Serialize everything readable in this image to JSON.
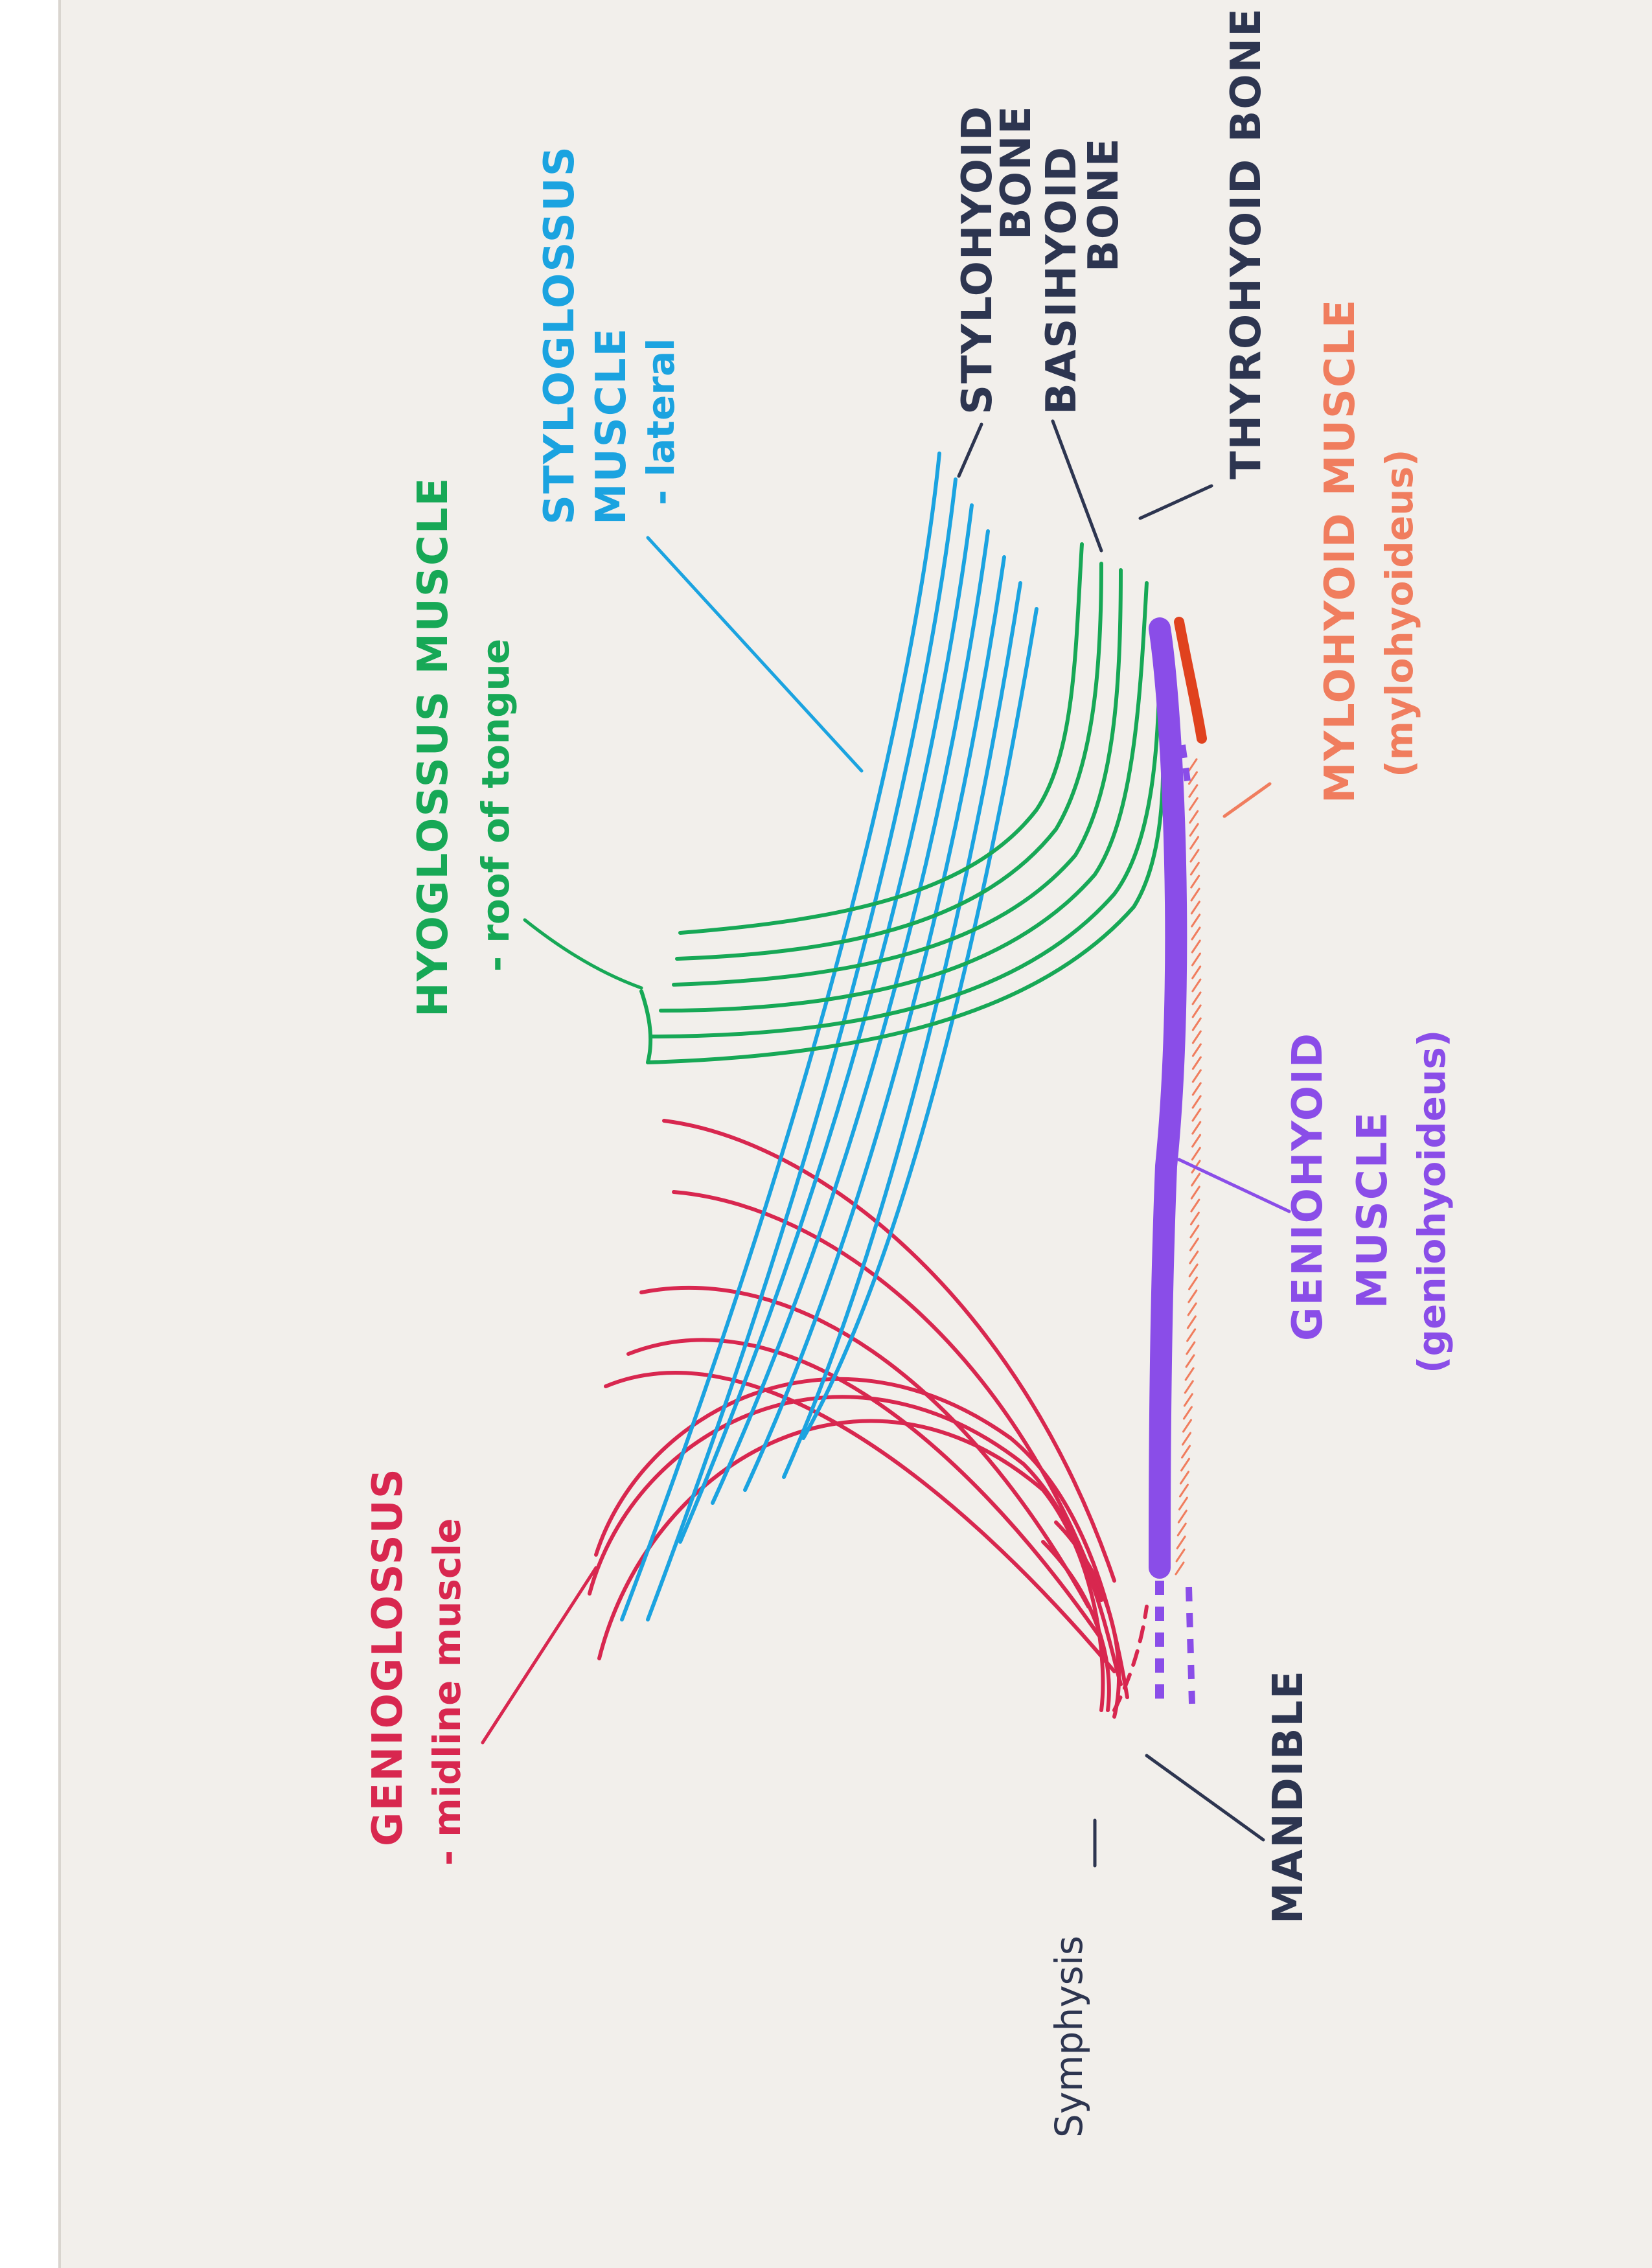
{
  "colors": {
    "paper": "#f2efeb",
    "scanner_edge": "#ffffff",
    "genioglossus": "#d8274f",
    "hyoglossus": "#17a856",
    "styloglossus": "#1ba3e0",
    "mylohyoid": "#f07d5e",
    "mylohyoid_dark": "#e0421e",
    "geniohyoid": "#8a4de8",
    "bone_ink": "#2d3550",
    "label_ink": "#1f2840"
  },
  "labels": {
    "genioglossus": {
      "line1": "GENIOGLOSSUS",
      "line2": "- midline muscle"
    },
    "hyoglossus": {
      "line1": "HYOGLOSSUS MUSCLE",
      "line2": "- roof of tongue"
    },
    "styloglossus": {
      "line1": "STYLOGLOSSUS",
      "line2": "MUSCLE",
      "line3": "- lateral"
    },
    "stylohyoid": {
      "line1": "STYLOHYOID",
      "line2": "BONE"
    },
    "basihyoid": {
      "line1": "BASIHYOID",
      "line2": "BONE"
    },
    "thyrohyoid": {
      "line1": "THYROHYOID BONE"
    },
    "mylohyoid": {
      "line1": "MYLOHYOID MUSCLE",
      "line2": "(mylohyoideus)"
    },
    "geniohyoid": {
      "line1": "GENIOHYOID",
      "line2": "MUSCLE",
      "line3": "(geniohyoideus)"
    },
    "mandible": "MANDIBLE",
    "symphysis": "Symphysis"
  }
}
